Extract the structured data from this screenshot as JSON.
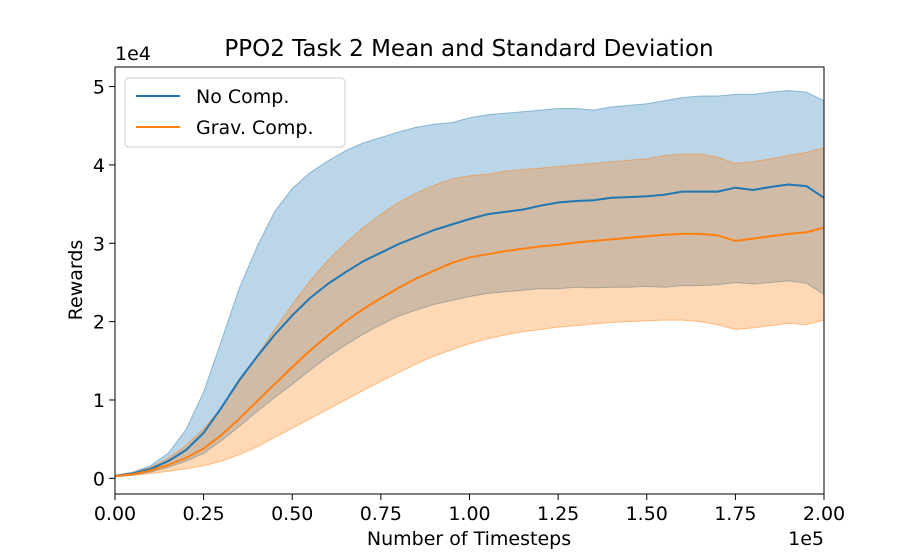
{
  "chart_data": {
    "type": "line",
    "title": "PPO2 Task 2 Mean and Standard Deviation",
    "xlabel": "Number of Timesteps",
    "ylabel": "Rewards",
    "x_offset_label": "1e5",
    "y_offset_label": "1e4",
    "xlim": [
      0,
      2.0
    ],
    "ylim": [
      -0.2,
      5.25
    ],
    "x_ticks": [
      0.0,
      0.25,
      0.5,
      0.75,
      1.0,
      1.25,
      1.5,
      1.75,
      2.0
    ],
    "x_tick_labels": [
      "0.00",
      "0.25",
      "0.50",
      "0.75",
      "1.00",
      "1.25",
      "1.50",
      "1.75",
      "2.00"
    ],
    "y_ticks": [
      0,
      1,
      2,
      3,
      4,
      5
    ],
    "y_tick_labels": [
      "0",
      "1",
      "2",
      "3",
      "4",
      "5"
    ],
    "grid": false,
    "legend_position": "upper-left",
    "x": [
      0.0,
      0.05,
      0.1,
      0.15,
      0.2,
      0.25,
      0.3,
      0.35,
      0.4,
      0.45,
      0.5,
      0.55,
      0.6,
      0.65,
      0.7,
      0.75,
      0.8,
      0.85,
      0.9,
      0.95,
      1.0,
      1.05,
      1.1,
      1.15,
      1.2,
      1.25,
      1.3,
      1.35,
      1.4,
      1.45,
      1.5,
      1.55,
      1.6,
      1.65,
      1.7,
      1.75,
      1.8,
      1.85,
      1.9,
      1.95,
      2.0
    ],
    "series": [
      {
        "name": "No Comp.",
        "color": "#1f77b4",
        "fill_color": "#1f77b4",
        "mean": [
          0.03,
          0.06,
          0.12,
          0.22,
          0.36,
          0.58,
          0.9,
          1.25,
          1.55,
          1.83,
          2.08,
          2.3,
          2.48,
          2.63,
          2.77,
          2.88,
          2.99,
          3.08,
          3.17,
          3.24,
          3.31,
          3.37,
          3.4,
          3.43,
          3.48,
          3.52,
          3.54,
          3.55,
          3.58,
          3.59,
          3.6,
          3.62,
          3.66,
          3.66,
          3.66,
          3.71,
          3.68,
          3.72,
          3.75,
          3.73,
          3.58
        ],
        "upper": [
          0.04,
          0.08,
          0.16,
          0.32,
          0.62,
          1.1,
          1.75,
          2.42,
          2.95,
          3.4,
          3.7,
          3.9,
          4.05,
          4.18,
          4.28,
          4.35,
          4.42,
          4.48,
          4.52,
          4.54,
          4.6,
          4.64,
          4.66,
          4.68,
          4.7,
          4.72,
          4.72,
          4.7,
          4.74,
          4.76,
          4.78,
          4.82,
          4.86,
          4.88,
          4.88,
          4.9,
          4.9,
          4.93,
          4.95,
          4.93,
          4.82
        ],
        "lower": [
          0.02,
          0.04,
          0.08,
          0.14,
          0.22,
          0.32,
          0.48,
          0.66,
          0.85,
          1.03,
          1.2,
          1.38,
          1.55,
          1.7,
          1.84,
          1.96,
          2.07,
          2.15,
          2.22,
          2.27,
          2.32,
          2.36,
          2.38,
          2.4,
          2.42,
          2.42,
          2.44,
          2.43,
          2.44,
          2.44,
          2.45,
          2.44,
          2.46,
          2.46,
          2.47,
          2.5,
          2.48,
          2.5,
          2.52,
          2.49,
          2.35
        ]
      },
      {
        "name": "Grav. Comp.",
        "color": "#ff7f0e",
        "fill_color": "#ff7f0e",
        "mean": [
          0.03,
          0.05,
          0.1,
          0.17,
          0.26,
          0.38,
          0.55,
          0.76,
          0.98,
          1.2,
          1.42,
          1.63,
          1.82,
          2.0,
          2.16,
          2.3,
          2.43,
          2.55,
          2.65,
          2.75,
          2.82,
          2.86,
          2.9,
          2.93,
          2.96,
          2.98,
          3.01,
          3.03,
          3.05,
          3.07,
          3.09,
          3.11,
          3.12,
          3.12,
          3.1,
          3.03,
          3.06,
          3.09,
          3.12,
          3.14,
          3.2
        ],
        "upper": [
          0.04,
          0.07,
          0.14,
          0.26,
          0.42,
          0.63,
          0.9,
          1.22,
          1.56,
          1.9,
          2.22,
          2.52,
          2.78,
          3.0,
          3.2,
          3.37,
          3.52,
          3.64,
          3.74,
          3.82,
          3.86,
          3.88,
          3.92,
          3.94,
          3.96,
          3.98,
          4.0,
          4.02,
          4.04,
          4.06,
          4.08,
          4.12,
          4.14,
          4.14,
          4.1,
          4.02,
          4.04,
          4.08,
          4.12,
          4.16,
          4.22
        ],
        "lower": [
          0.02,
          0.04,
          0.06,
          0.09,
          0.12,
          0.16,
          0.22,
          0.3,
          0.4,
          0.52,
          0.64,
          0.76,
          0.88,
          1.0,
          1.12,
          1.24,
          1.35,
          1.46,
          1.56,
          1.64,
          1.72,
          1.78,
          1.83,
          1.87,
          1.9,
          1.93,
          1.95,
          1.97,
          1.99,
          2.0,
          2.01,
          2.02,
          2.02,
          2.0,
          1.96,
          1.9,
          1.92,
          1.95,
          1.98,
          1.96,
          2.02
        ]
      }
    ]
  }
}
